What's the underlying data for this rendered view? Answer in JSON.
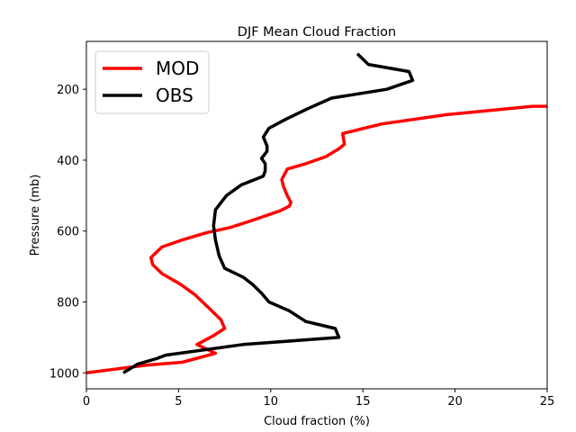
{
  "chart_data": {
    "type": "line",
    "title": "DJF Mean Cloud Fraction",
    "xlabel": "Cloud fraction (%)",
    "ylabel": "Pressure (mb)",
    "xlim": [
      0,
      25
    ],
    "ylim": [
      1045,
      65
    ],
    "y_inverted": true,
    "grid": false,
    "legend_position": "top-left",
    "xticks": [
      0,
      5,
      10,
      15,
      20,
      25
    ],
    "yticks": [
      200,
      400,
      600,
      800,
      1000
    ],
    "series": [
      {
        "name": "MOD",
        "color": "#ff0000",
        "x": [
          25.0,
          24.2,
          19.5,
          16.0,
          13.9,
          14.0,
          13.7,
          13.0,
          11.9,
          10.9,
          10.6,
          10.7,
          10.9,
          11.1,
          11.0,
          10.5,
          9.0,
          7.8,
          6.5,
          5.2,
          4.1,
          3.7,
          3.5,
          3.6,
          4.1,
          5.1,
          5.9,
          6.6,
          7.3,
          7.5,
          6.9,
          6.0,
          7.0,
          5.2,
          3.3,
          1.5,
          0.0
        ],
        "y": [
          248,
          248,
          272,
          298,
          325,
          355,
          368,
          390,
          410,
          425,
          455,
          475,
          500,
          520,
          530,
          543,
          570,
          590,
          605,
          625,
          645,
          665,
          675,
          695,
          720,
          750,
          780,
          815,
          850,
          875,
          895,
          920,
          945,
          970,
          978,
          990,
          1000
        ]
      },
      {
        "name": "OBS",
        "color": "#000000",
        "x": [
          14.7,
          15.3,
          17.5,
          17.7,
          16.3,
          13.3,
          12.0,
          10.8,
          9.9,
          9.6,
          9.8,
          9.8,
          9.5,
          9.7,
          9.7,
          9.6,
          8.4,
          7.6,
          7.0,
          6.9,
          7.0,
          7.2,
          7.5,
          8.5,
          9.0,
          9.5,
          9.9,
          11.0,
          11.9,
          13.5,
          13.7,
          8.5,
          4.3,
          3.8,
          2.8,
          2.0
        ],
        "y": [
          100,
          130,
          150,
          175,
          200,
          225,
          255,
          285,
          310,
          335,
          360,
          375,
          395,
          410,
          430,
          445,
          470,
          500,
          540,
          585,
          625,
          670,
          705,
          730,
          750,
          775,
          800,
          825,
          855,
          875,
          900,
          920,
          950,
          960,
          975,
          1000
        ]
      }
    ]
  }
}
